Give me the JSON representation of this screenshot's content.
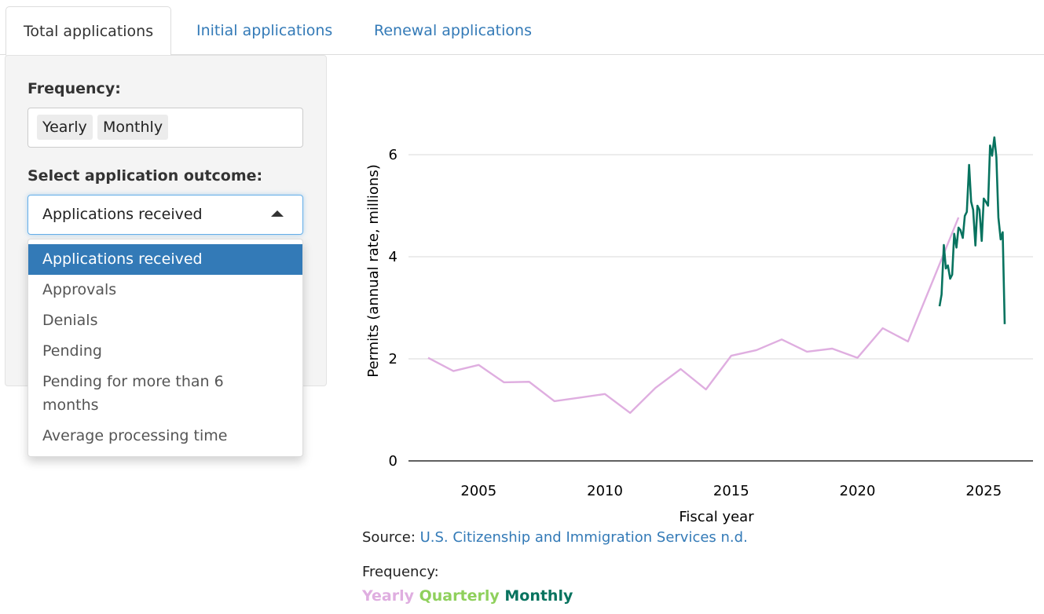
{
  "tabs": [
    {
      "label": "Total applications",
      "active": true
    },
    {
      "label": "Initial applications"
    },
    {
      "label": "Renewal applications"
    }
  ],
  "sidebar": {
    "frequency_label": "Frequency:",
    "frequency_chips": [
      "Yearly",
      "Monthly"
    ],
    "outcome_label": "Select application outcome:",
    "outcome_selected": "Applications received",
    "outcome_options": [
      "Applications received",
      "Approvals",
      "Denials",
      "Pending",
      "Pending for more than 6 months",
      "Average processing time"
    ]
  },
  "source": {
    "prefix": "Source: ",
    "link": "U.S. Citizenship and Immigration Services n.d."
  },
  "legend": {
    "title": "Frequency:",
    "items": [
      {
        "label": "Yearly",
        "color": "#dfaee0"
      },
      {
        "label": "Quarterly",
        "color": "#8fd05c"
      },
      {
        "label": "Monthly",
        "color": "#08735f"
      }
    ]
  },
  "chart_data": {
    "type": "line",
    "xlabel": "Fiscal year",
    "ylabel": "Permits (annual rate, millions)",
    "xlim": [
      2002.2,
      2026.2
    ],
    "ylim": [
      0,
      6.5
    ],
    "xticks": [
      "2005",
      "2010",
      "2015",
      "2020",
      "2025"
    ],
    "yticks": [
      "0",
      "2",
      "4",
      "6"
    ],
    "grid": true,
    "series": [
      {
        "name": "Yearly",
        "color": "#dfaee0",
        "x": [
          2003,
          2004,
          2005,
          2006,
          2007,
          2008,
          2009,
          2010,
          2011,
          2012,
          2013,
          2014,
          2015,
          2016,
          2017,
          2018,
          2019,
          2020,
          2021,
          2022,
          2023,
          2024
        ],
        "values": [
          2.02,
          1.76,
          1.88,
          1.54,
          1.55,
          1.17,
          1.24,
          1.31,
          0.94,
          1.43,
          1.8,
          1.4,
          2.06,
          2.17,
          2.38,
          2.14,
          2.2,
          2.02,
          2.6,
          2.34,
          3.55,
          4.77
        ]
      },
      {
        "name": "Monthly",
        "color": "#08735f",
        "x": [
          2023.25,
          2023.33,
          2023.42,
          2023.5,
          2023.58,
          2023.67,
          2023.75,
          2023.83,
          2023.92,
          2024.0,
          2024.08,
          2024.17,
          2024.25,
          2024.33,
          2024.42,
          2024.5,
          2024.58,
          2024.67,
          2024.75,
          2024.83,
          2024.92,
          2025.0,
          2025.08,
          2025.17,
          2025.25,
          2025.33,
          2025.42,
          2025.5,
          2025.58,
          2025.67,
          2025.75,
          2025.83
        ],
        "values": [
          3.03,
          3.26,
          4.23,
          3.77,
          3.83,
          3.57,
          3.65,
          4.45,
          4.18,
          4.57,
          4.52,
          4.37,
          4.8,
          4.88,
          5.8,
          5.08,
          4.92,
          4.22,
          5.0,
          4.92,
          4.31,
          5.14,
          5.08,
          5.0,
          6.18,
          5.98,
          6.34,
          5.95,
          4.77,
          4.34,
          4.48,
          2.68
        ]
      }
    ]
  }
}
